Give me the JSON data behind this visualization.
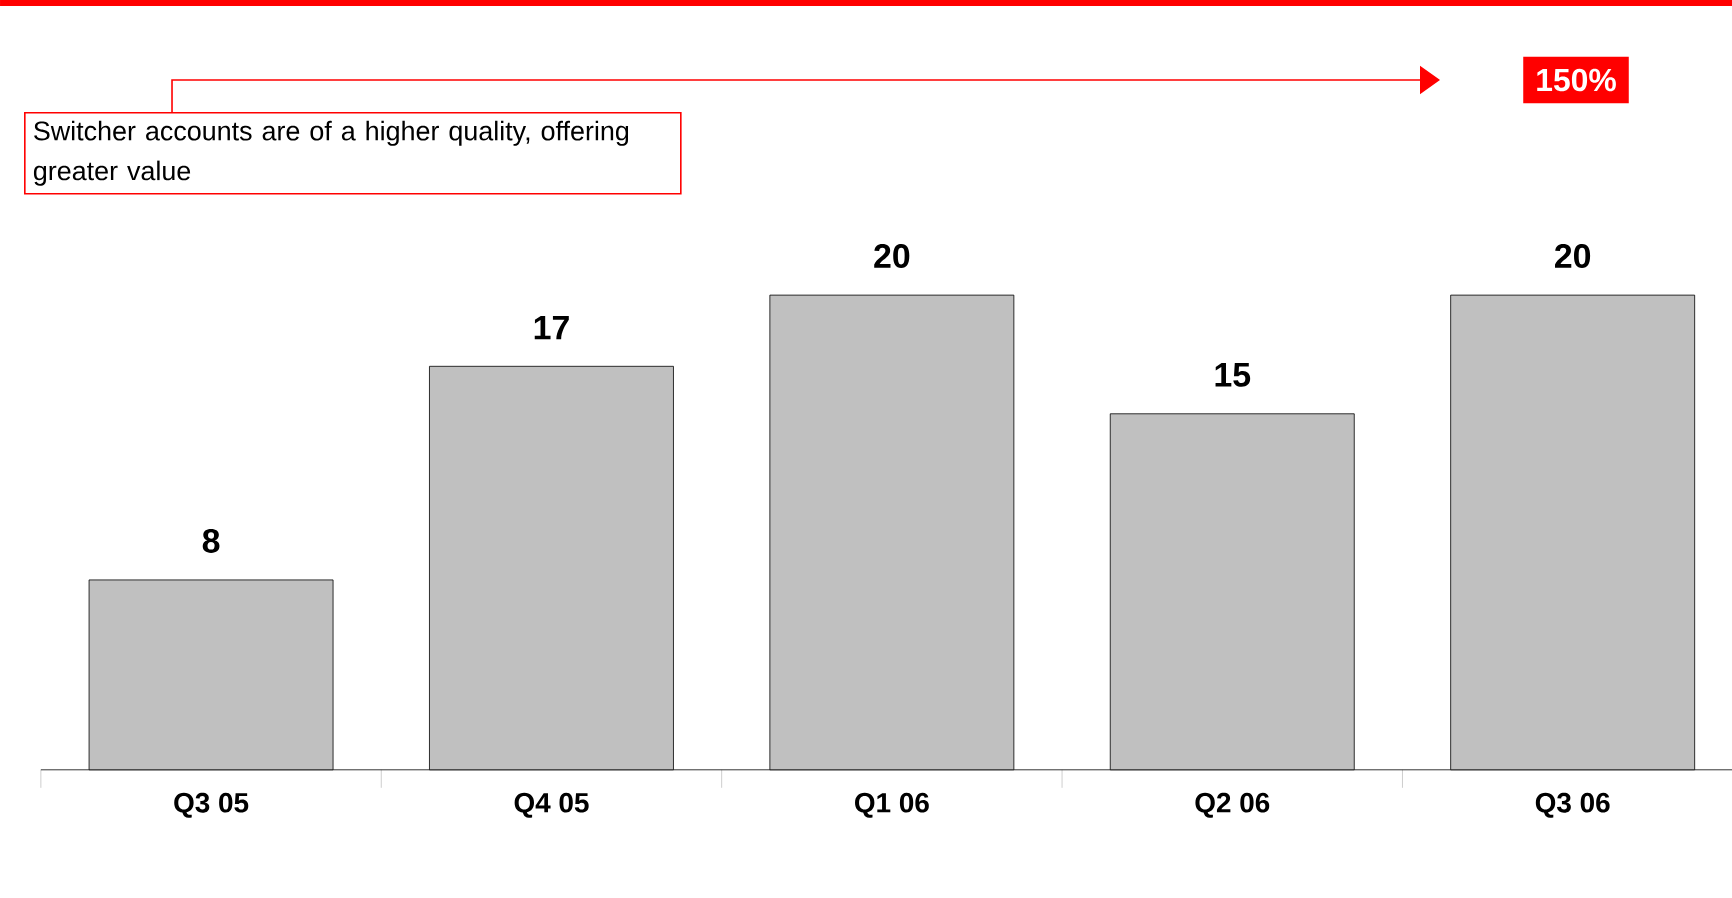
{
  "chart_data": {
    "type": "bar",
    "categories": [
      "Q3 05",
      "Q4 05",
      "Q1 06",
      "Q2 06",
      "Q3 06"
    ],
    "values": [
      8,
      17,
      20,
      15,
      20
    ],
    "color": "#c0c0c0",
    "data_labels": true,
    "annotations": [
      "Switcher accounts are of a higher quality, offering greater value",
      "150%"
    ]
  }
}
